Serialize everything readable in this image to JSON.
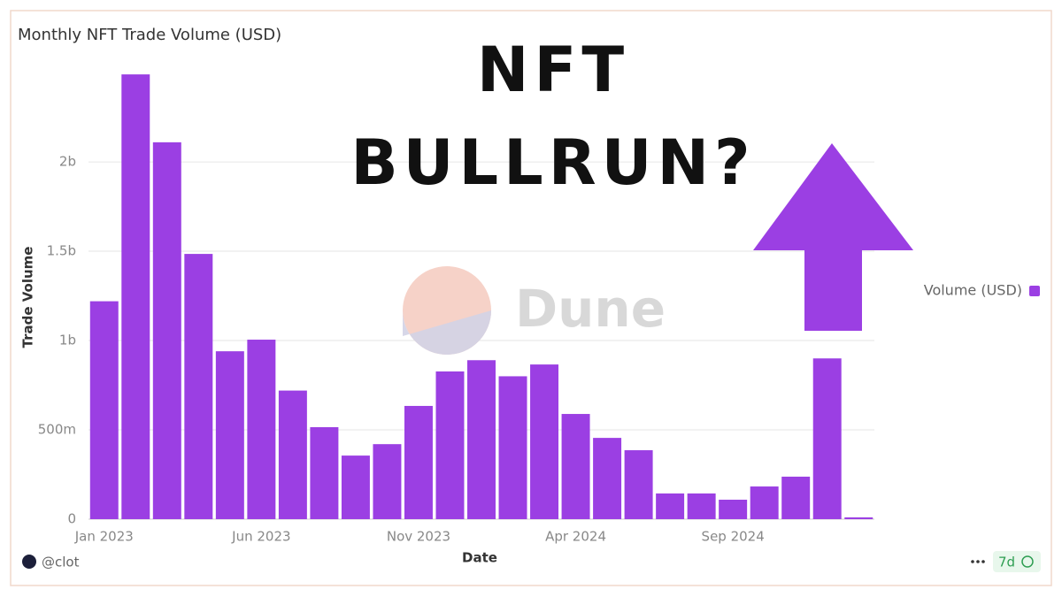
{
  "chart_data": {
    "type": "bar",
    "title": "Monthly NFT Trade Volume (USD)",
    "annotations": [
      "NFT",
      "BULLRUN?"
    ],
    "watermark": "Dune",
    "x_label": "Date",
    "y_label": "Trade Volume",
    "author": "@clot",
    "refresh": "7d",
    "categories": [
      "Jan 2023",
      null,
      null,
      null,
      null,
      "Jun 2023",
      null,
      null,
      null,
      null,
      "Nov 2023",
      null,
      null,
      null,
      null,
      "Apr 2024",
      null,
      null,
      null,
      null,
      "Sep 2024",
      null,
      null,
      null,
      null
    ],
    "series": [
      {
        "name": "Volume (USD)",
        "color": "#9b3fe3",
        "values": [
          1220000000,
          2490000000,
          2110000000,
          1485000000,
          940000000,
          1005000000,
          720000000,
          515000000,
          356000000,
          420000000,
          634000000,
          827000000,
          890000000,
          800000000,
          866000000,
          589000000,
          455000000,
          386000000,
          144000000,
          144000000,
          109000000,
          183000000,
          238000000,
          900000000,
          10000000
        ]
      }
    ],
    "ylim": [
      0,
      2550000000
    ],
    "yticks": [
      0,
      {
        "value": 500000000,
        "label": "500m"
      },
      {
        "value": 1000000000,
        "label": "1b"
      },
      {
        "value": 1500000000,
        "label": "1.5b"
      },
      {
        "value": 2000000000,
        "label": "2b"
      }
    ],
    "grid": true,
    "legend": "right"
  }
}
